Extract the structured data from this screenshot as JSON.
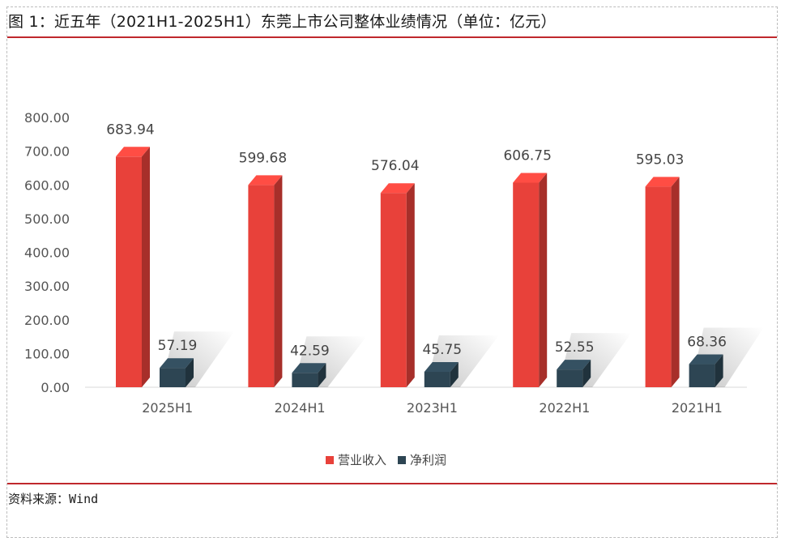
{
  "figure": {
    "title": "图 1：近五年（2021H1-2025H1）东莞上市公司整体业绩情况（单位：亿元）",
    "source_label": "资料来源：",
    "source_value": "Wind"
  },
  "chart_data": {
    "type": "bar",
    "categories": [
      "2025H1",
      "2024H1",
      "2023H1",
      "2022H1",
      "2021H1"
    ],
    "series": [
      {
        "name": "营业收入",
        "color": "#e8413a",
        "values": [
          683.94,
          599.68,
          576.04,
          606.75,
          595.03
        ],
        "labels": [
          "683.94",
          "599.68",
          "576.04",
          "606.75",
          "595.03"
        ]
      },
      {
        "name": "净利润",
        "color": "#2d4553",
        "values": [
          57.19,
          42.59,
          45.75,
          52.55,
          68.36
        ],
        "labels": [
          "57.19",
          "42.59",
          "45.75",
          "52.55",
          "68.36"
        ]
      }
    ],
    "ylim": [
      0,
      800
    ],
    "yticks": [
      "0.00",
      "100.00",
      "200.00",
      "300.00",
      "400.00",
      "500.00",
      "600.00",
      "700.00",
      "800.00"
    ],
    "grid": false,
    "legend": "bottom",
    "style": "3d-column"
  }
}
